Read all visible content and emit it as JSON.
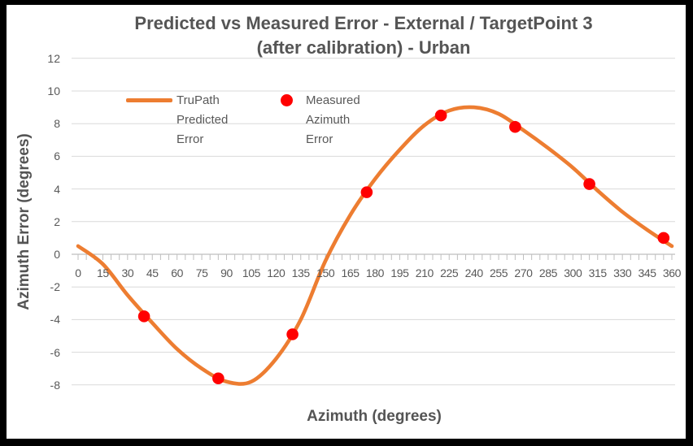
{
  "title": {
    "line1": "Predicted vs Measured Error - External / TargetPoint 3",
    "line2": "(after calibration) - Urban"
  },
  "axes": {
    "y_title": "Azimuth Error (degrees)",
    "x_title": "Azimuth (degrees)",
    "y_ticks": [
      12,
      10,
      8,
      6,
      4,
      2,
      0,
      -2,
      -4,
      -6,
      -8
    ],
    "x_ticks": [
      0,
      15,
      30,
      45,
      60,
      75,
      90,
      105,
      120,
      135,
      150,
      165,
      180,
      195,
      210,
      225,
      240,
      255,
      270,
      285,
      300,
      315,
      330,
      345,
      360
    ]
  },
  "legend": [
    {
      "label": "TruPath Predicted Error",
      "lines": [
        "TruPath",
        "Predicted",
        "Error"
      ],
      "swatch": "line"
    },
    {
      "label": "Measured Azimuth Error",
      "lines": [
        "Measured",
        "Azimuth",
        "Error"
      ],
      "swatch": "dot"
    }
  ],
  "colors": {
    "predicted_line": "#ED7D31",
    "measured_point": "#FF0000",
    "gridline": "#D9D9D9",
    "axis_line": "#BFBFBF",
    "text": "#595959",
    "title_text": "#555555",
    "frame_border": "#000000"
  },
  "chart_data": {
    "type": "line",
    "title": "Predicted vs Measured Error - External / TargetPoint 3 (after calibration) - Urban",
    "xlabel": "Azimuth (degrees)",
    "ylabel": "Azimuth Error (degrees)",
    "xlim": [
      0,
      360
    ],
    "ylim": [
      -8,
      12
    ],
    "x_tick_step": 15,
    "x_minor_tick_step": 5,
    "grid": "horizontal",
    "legend_position": "top-inside",
    "series": [
      {
        "name": "TruPath Predicted Error",
        "type": "line",
        "color": "#ED7D31",
        "points": [
          [
            0,
            0.5
          ],
          [
            15,
            -0.6
          ],
          [
            30,
            -2.5
          ],
          [
            45,
            -4.2
          ],
          [
            60,
            -5.8
          ],
          [
            75,
            -7.0
          ],
          [
            90,
            -7.8
          ],
          [
            105,
            -7.8
          ],
          [
            120,
            -6.4
          ],
          [
            135,
            -4.0
          ],
          [
            150,
            -0.4
          ],
          [
            165,
            2.4
          ],
          [
            180,
            4.6
          ],
          [
            195,
            6.4
          ],
          [
            210,
            7.9
          ],
          [
            225,
            8.8
          ],
          [
            240,
            9.0
          ],
          [
            255,
            8.6
          ],
          [
            270,
            7.6
          ],
          [
            285,
            6.5
          ],
          [
            300,
            5.3
          ],
          [
            315,
            3.9
          ],
          [
            330,
            2.6
          ],
          [
            345,
            1.5
          ],
          [
            360,
            0.5
          ]
        ]
      },
      {
        "name": "Measured Azimuth Error",
        "type": "scatter",
        "color": "#FF0000",
        "points": [
          [
            40,
            -3.8
          ],
          [
            85,
            -7.6
          ],
          [
            130,
            -4.9
          ],
          [
            175,
            3.8
          ],
          [
            220,
            8.5
          ],
          [
            265,
            7.8
          ],
          [
            310,
            4.3
          ],
          [
            355,
            1.0
          ]
        ]
      }
    ]
  }
}
